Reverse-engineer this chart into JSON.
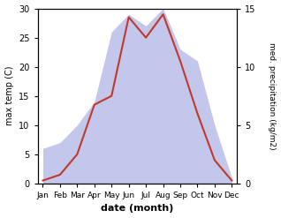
{
  "months": [
    "Jan",
    "Feb",
    "Mar",
    "Apr",
    "May",
    "Jun",
    "Jul",
    "Aug",
    "Sep",
    "Oct",
    "Nov",
    "Dec"
  ],
  "temperature": [
    0.5,
    1.5,
    5.0,
    13.5,
    15.0,
    28.5,
    25.0,
    29.0,
    21.0,
    12.0,
    4.0,
    0.5
  ],
  "precipitation": [
    3.0,
    3.5,
    5.0,
    7.0,
    13.0,
    14.5,
    13.5,
    15.0,
    11.5,
    10.5,
    5.0,
    0.5
  ],
  "temp_color": "#c0392b",
  "precip_fill_color": "#b8bde8",
  "temp_ylim": [
    0,
    30
  ],
  "precip_ylim": [
    0,
    15
  ],
  "xlabel": "date (month)",
  "ylabel_left": "max temp (C)",
  "ylabel_right": "med. precipitation (kg/m2)",
  "temp_yticks": [
    0,
    5,
    10,
    15,
    20,
    25,
    30
  ],
  "precip_yticks": [
    0,
    5,
    10,
    15
  ],
  "bg_color": "#ffffff"
}
